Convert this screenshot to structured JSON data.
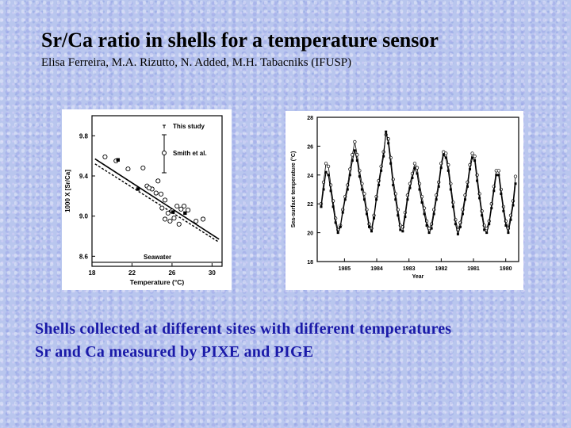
{
  "slide": {
    "title": "Sr/Ca ratio in shells for a temperature sensor",
    "authors": "Elisa Ferreira, M.A. Rizutto, N. Added, M.H. Tabacniks (IFUSP)",
    "bullets": [
      "Shells collected at different sites with different temperatures",
      "Sr and Ca measured by PIXE and PIGE"
    ]
  },
  "chart_data": [
    {
      "type": "scatter",
      "xlabel": "Temperature (°C)",
      "ylabel": "1000 X [Sr/Ca]",
      "xlim": [
        18,
        31
      ],
      "ylim": [
        8.5,
        10.0
      ],
      "xticks": [
        "18",
        "22",
        "26",
        "30"
      ],
      "yticks": [
        "8.6",
        "9.0",
        "9.4",
        "9.8"
      ],
      "legend": [
        "This study",
        "Smith et al."
      ],
      "annotations": [
        "Seawater"
      ],
      "seawater_level": 8.54,
      "series": [
        {
          "name": "Smith et al.",
          "marker": "open-circle",
          "points": [
            [
              19.3,
              9.59
            ],
            [
              20.4,
              9.55
            ],
            [
              21.6,
              9.47
            ],
            [
              23.1,
              9.48
            ],
            [
              23.5,
              9.3
            ],
            [
              24.0,
              9.27
            ],
            [
              24.4,
              9.23
            ],
            [
              24.9,
              9.22
            ],
            [
              25.3,
              9.16
            ],
            [
              25.0,
              9.08
            ],
            [
              25.6,
              9.03
            ],
            [
              26.0,
              9.05
            ],
            [
              26.5,
              9.1
            ],
            [
              26.9,
              9.07
            ],
            [
              27.2,
              9.1
            ],
            [
              27.6,
              9.06
            ],
            [
              26.2,
              8.98
            ],
            [
              25.8,
              8.95
            ],
            [
              25.3,
              8.97
            ],
            [
              23.7,
              9.28
            ],
            [
              28.4,
              8.95
            ],
            [
              29.1,
              8.97
            ],
            [
              26.7,
              8.92
            ],
            [
              24.6,
              9.35
            ]
          ]
        },
        {
          "name": "This study",
          "marker": "filled-square",
          "points": [
            [
              20.6,
              9.56
            ],
            [
              22.6,
              9.27
            ],
            [
              26.1,
              9.04
            ],
            [
              27.3,
              9.03
            ]
          ]
        },
        {
          "name": "regression",
          "line": [
            [
              18.3,
              9.57
            ],
            [
              30.7,
              8.77
            ]
          ]
        },
        {
          "name": "regression 2",
          "line": [
            [
              18.3,
              9.52
            ],
            [
              30.7,
              8.74
            ]
          ]
        }
      ]
    },
    {
      "type": "line",
      "xlabel": "Year",
      "ylabel": "Sea-surface temperature (°C)",
      "ylim": [
        18,
        28
      ],
      "yticks": [
        "18",
        "20",
        "22",
        "24",
        "26",
        "28"
      ],
      "xticks": [
        "1985",
        "1984",
        "1983",
        "1982",
        "1981",
        "1980"
      ],
      "series": [
        {
          "name": "open",
          "marker": "open-circle",
          "values": [
            22.0,
            23.5,
            24.8,
            24.6,
            23.3,
            22.2,
            21.0,
            20.2,
            20.5,
            21.6,
            22.5,
            23.3,
            24.4,
            25.4,
            26.3,
            25.4,
            24.3,
            23.4,
            22.7,
            21.6,
            20.6,
            20.3,
            21.2,
            22.5,
            23.6,
            24.6,
            25.6,
            26.8,
            26.5,
            25.2,
            23.7,
            22.7,
            21.6,
            20.5,
            20.4,
            21.4,
            22.6,
            23.4,
            24.1,
            24.8,
            24.5,
            23.4,
            22.5,
            21.7,
            20.8,
            20.3,
            20.6,
            21.6,
            22.6,
            23.5,
            24.8,
            25.6,
            25.5,
            24.7,
            23.4,
            22.1,
            20.9,
            20.2,
            20.7,
            21.6,
            22.6,
            23.5,
            24.7,
            25.5,
            25.3,
            24.0,
            22.7,
            21.5,
            20.5,
            20.3,
            20.8,
            22.0,
            23.2,
            24.3,
            24.3,
            23.0,
            21.8,
            20.8,
            20.3,
            21.2,
            22.2,
            23.9
          ]
        },
        {
          "name": "filled",
          "marker": "filled-square",
          "values": [
            21.8,
            23.0,
            24.2,
            24.0,
            22.9,
            21.8,
            20.7,
            20.0,
            20.4,
            21.4,
            22.3,
            23.0,
            24.0,
            25.0,
            25.7,
            25.0,
            23.9,
            23.0,
            22.3,
            21.3,
            20.4,
            20.1,
            21.0,
            22.3,
            23.3,
            24.3,
            25.3,
            27.0,
            26.2,
            24.8,
            23.3,
            22.3,
            21.2,
            20.2,
            20.1,
            21.1,
            22.3,
            23.1,
            23.8,
            24.5,
            24.1,
            23.0,
            22.1,
            21.3,
            20.5,
            20.0,
            20.3,
            21.3,
            22.3,
            23.2,
            24.5,
            25.4,
            25.2,
            24.3,
            23.0,
            21.8,
            20.6,
            19.9,
            20.4,
            21.3,
            22.3,
            23.2,
            24.4,
            25.2,
            25.0,
            23.6,
            22.4,
            21.2,
            20.2,
            20.0,
            20.6,
            21.7,
            22.9,
            24.0,
            24.0,
            22.7,
            21.5,
            20.5,
            20.0,
            20.9,
            21.9,
            23.4
          ]
        }
      ]
    }
  ]
}
